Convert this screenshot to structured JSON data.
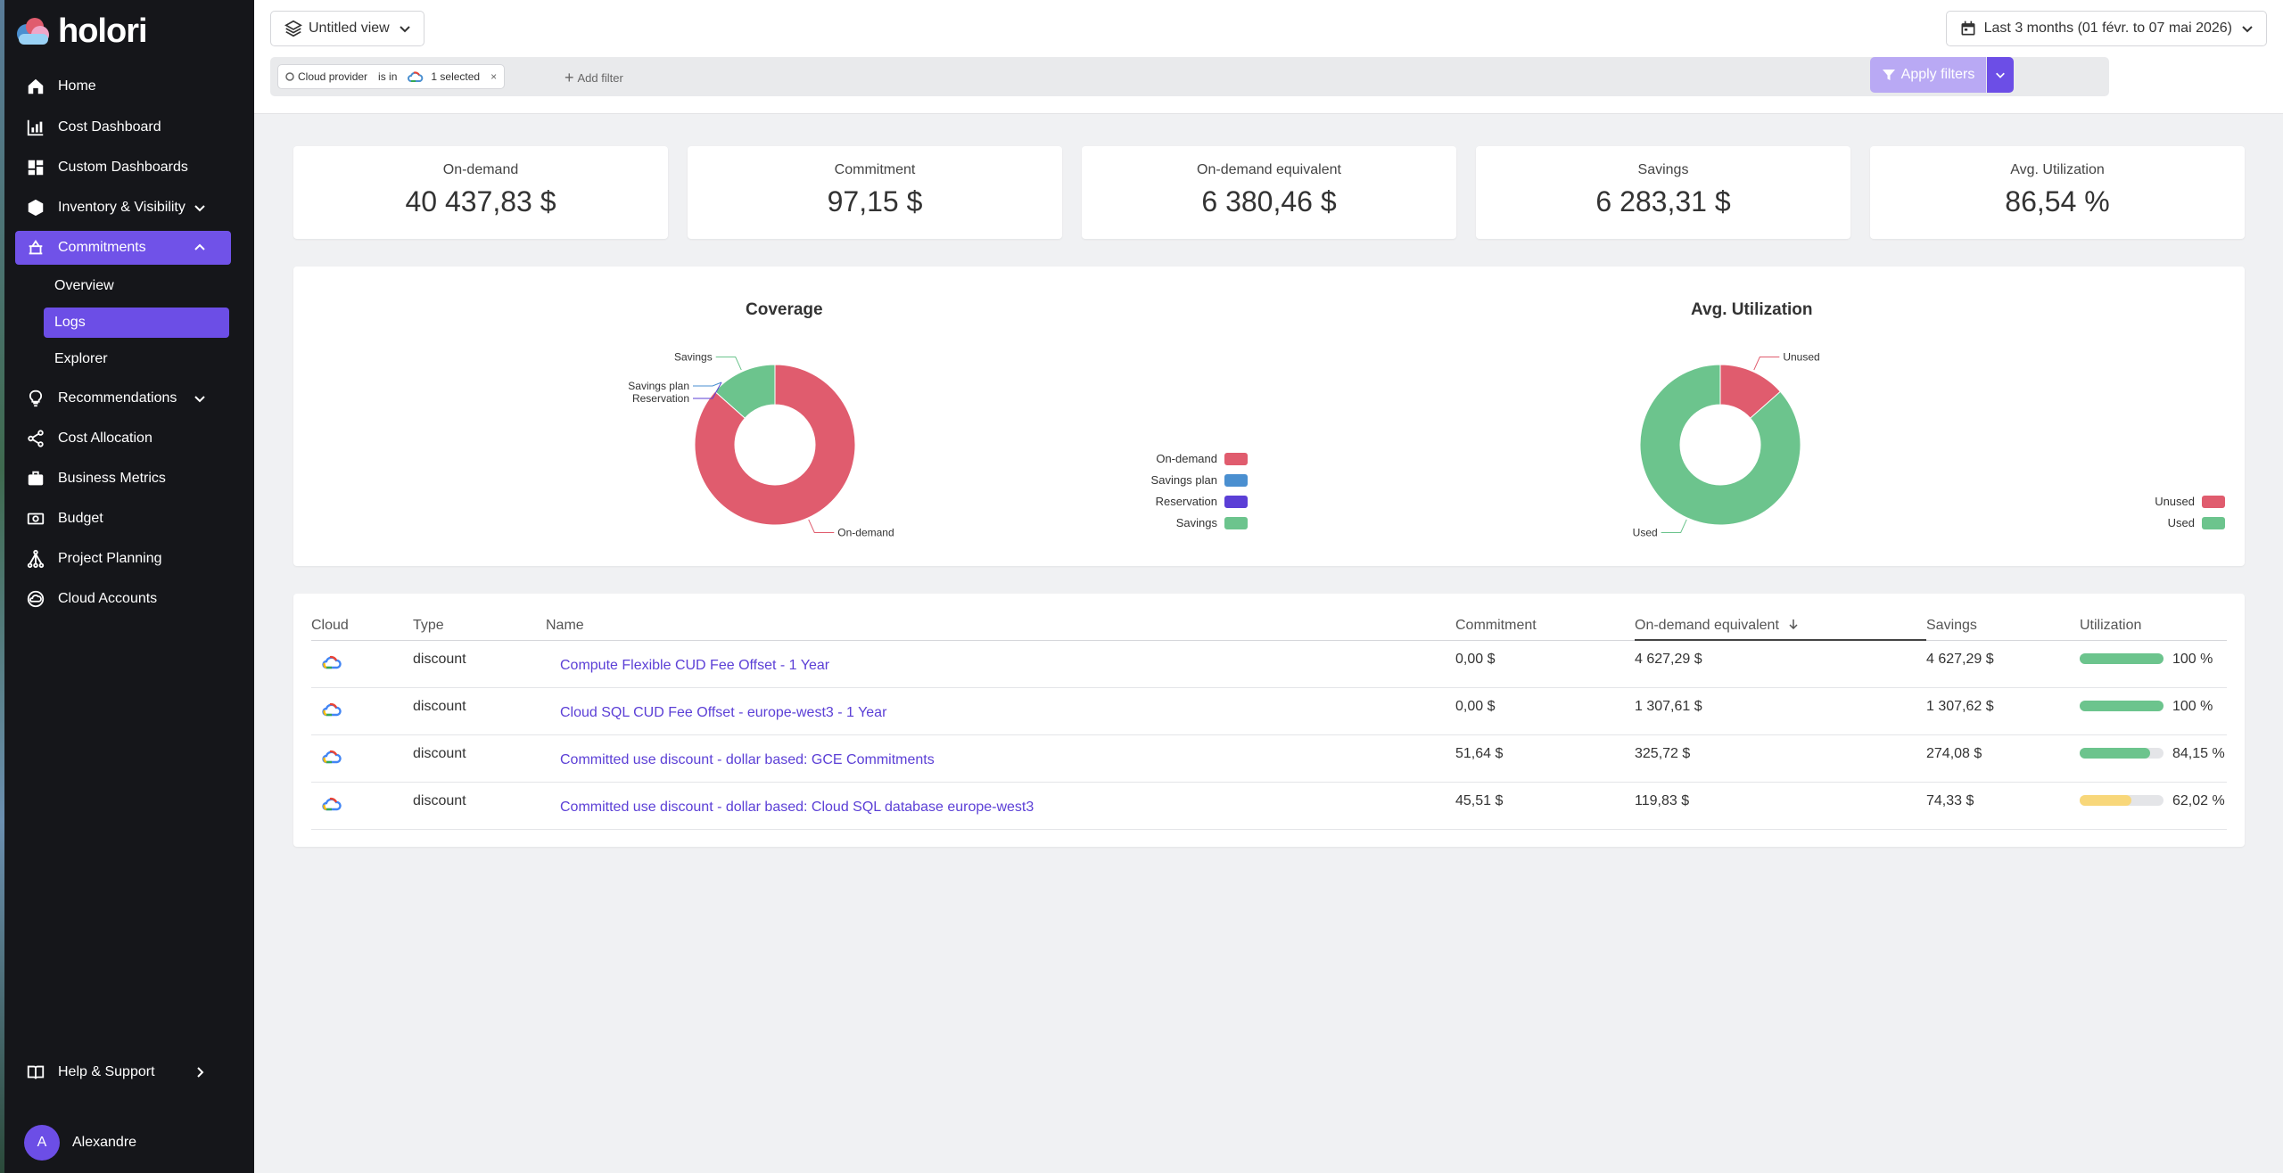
{
  "app": {
    "logo_text": "holori"
  },
  "sidebar": {
    "items": [
      {
        "label": "Home",
        "icon": "home-icon"
      },
      {
        "label": "Cost Dashboard",
        "icon": "bar-chart-icon"
      },
      {
        "label": "Custom Dashboards",
        "icon": "dashboard-grid-icon"
      },
      {
        "label": "Inventory & Visibility",
        "icon": "cube-icon",
        "expandable": true
      },
      {
        "label": "Commitments",
        "icon": "commitment-icon",
        "expandable": true,
        "active": true
      },
      {
        "label": "Recommendations",
        "icon": "lightbulb-icon",
        "expandable": true
      },
      {
        "label": "Cost Allocation",
        "icon": "share-icon"
      },
      {
        "label": "Business Metrics",
        "icon": "briefcase-icon"
      },
      {
        "label": "Budget",
        "icon": "money-icon"
      },
      {
        "label": "Project Planning",
        "icon": "sitemap-icon"
      },
      {
        "label": "Cloud Accounts",
        "icon": "cloud-circle-icon"
      }
    ],
    "sub_items": [
      {
        "label": "Overview"
      },
      {
        "label": "Logs",
        "active": true
      },
      {
        "label": "Explorer"
      }
    ],
    "help_label": "Help & Support",
    "user": {
      "initial": "A",
      "name": "Alexandre"
    }
  },
  "topbar": {
    "view_label": "Untitled view",
    "date_range": "Last 3 months (01 févr. to 07 mai 2026)",
    "filter": {
      "field": "Cloud provider",
      "operator": "is in",
      "value": "1 selected"
    },
    "add_filter": "Add filter",
    "apply_label": "Apply filters"
  },
  "kpis": [
    {
      "label": "On-demand",
      "value": "40 437,83 $"
    },
    {
      "label": "Commitment",
      "value": "97,15 $"
    },
    {
      "label": "On-demand equivalent",
      "value": "6 380,46 $"
    },
    {
      "label": "Savings",
      "value": "6 283,31 $"
    },
    {
      "label": "Avg. Utilization",
      "value": "86,54 %"
    }
  ],
  "colors": {
    "on_demand": "#e05c6e",
    "savings_plan": "#4a8fd0",
    "reservation": "#5b3fd6",
    "savings": "#6cc48d",
    "unused": "#e05c6e",
    "used": "#6cc48d",
    "accent": "#6c4ee6"
  },
  "chart_data": [
    {
      "type": "pie",
      "title": "Coverage",
      "categories": [
        "On-demand",
        "Savings plan",
        "Reservation",
        "Savings"
      ],
      "values": [
        40437.83,
        0,
        0,
        6283.31
      ],
      "legend_position": "right",
      "colors": [
        "#e05c6e",
        "#4a8fd0",
        "#5b3fd6",
        "#6cc48d"
      ]
    },
    {
      "type": "pie",
      "title": "Avg. Utilization",
      "categories": [
        "Unused",
        "Used"
      ],
      "values": [
        13.46,
        86.54
      ],
      "legend_position": "right",
      "colors": [
        "#e05c6e",
        "#6cc48d"
      ]
    }
  ],
  "table": {
    "columns": [
      "Cloud",
      "Type",
      "Name",
      "Commitment",
      "On-demand equivalent",
      "Savings",
      "Utilization"
    ],
    "sorted_column": "On-demand equivalent",
    "rows": [
      {
        "cloud": "gcp",
        "type": "discount",
        "name": "Compute Flexible CUD Fee Offset - 1 Year",
        "commitment": "0,00 $",
        "on_demand_equivalent": "4 627,29 $",
        "savings": "4 627,29 $",
        "utilization": "100 %",
        "utilization_value": 100,
        "utilization_color": "#6cc48d"
      },
      {
        "cloud": "gcp",
        "type": "discount",
        "name": "Cloud SQL CUD Fee Offset - europe-west3 - 1 Year",
        "commitment": "0,00 $",
        "on_demand_equivalent": "1 307,61 $",
        "savings": "1 307,62 $",
        "utilization": "100 %",
        "utilization_value": 100,
        "utilization_color": "#6cc48d"
      },
      {
        "cloud": "gcp",
        "type": "discount",
        "name": "Committed use discount - dollar based: GCE Commitments",
        "commitment": "51,64 $",
        "on_demand_equivalent": "325,72 $",
        "savings": "274,08 $",
        "utilization": "84,15 %",
        "utilization_value": 84.15,
        "utilization_color": "#6cc48d"
      },
      {
        "cloud": "gcp",
        "type": "discount",
        "name": "Committed use discount - dollar based: Cloud SQL database europe-west3",
        "commitment": "45,51 $",
        "on_demand_equivalent": "119,83 $",
        "savings": "74,33 $",
        "utilization": "62,02 %",
        "utilization_value": 62.02,
        "utilization_color": "#f8d77a"
      }
    ]
  }
}
